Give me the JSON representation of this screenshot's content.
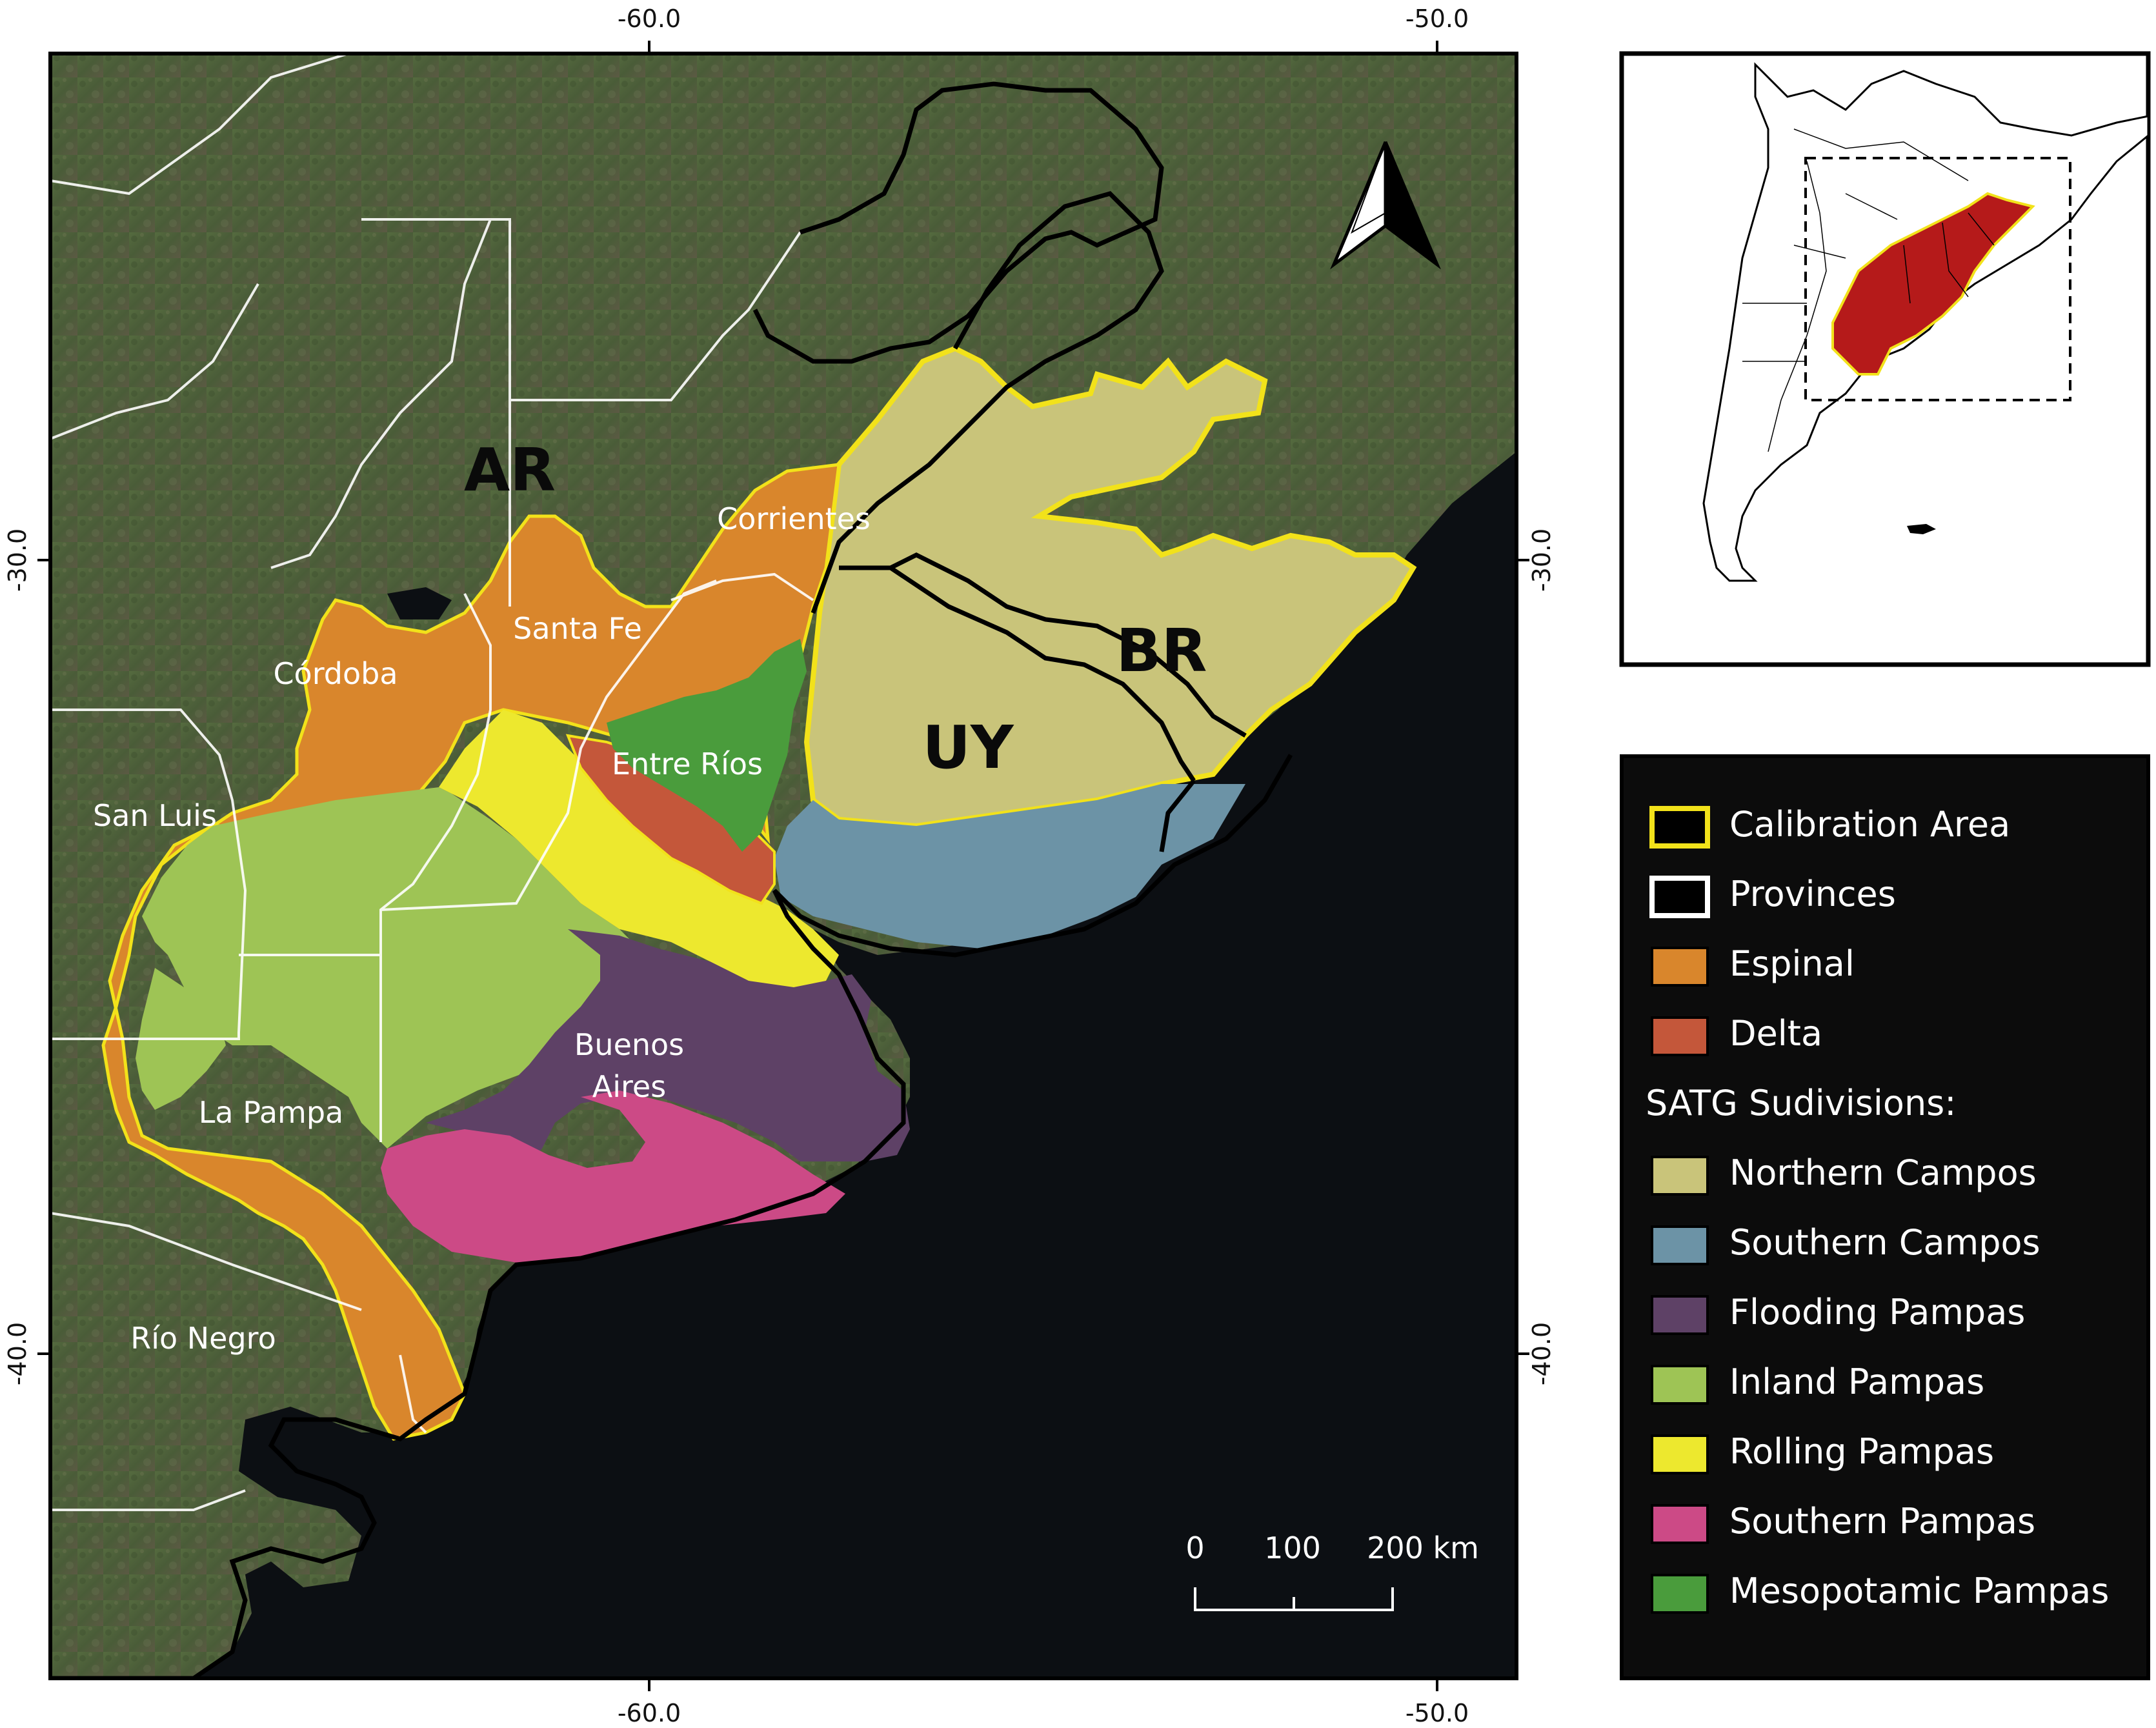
{
  "axes": {
    "top": [
      "-60.0",
      "-50.0"
    ],
    "bottom": [
      "-60.0",
      "-50.0"
    ],
    "left": [
      "-30.0",
      "-40.0"
    ],
    "right": [
      "-30.0",
      "-40.0"
    ]
  },
  "countries": {
    "ar": "AR",
    "uy": "UY",
    "br": "BR"
  },
  "provinces": {
    "corrientes": "Corrientes",
    "santa_fe": "Santa Fe",
    "cordoba": "Córdoba",
    "entre_rios": "Entre Ríos",
    "san_luis": "San Luis",
    "buenos_aires_1": "Buenos",
    "buenos_aires_2": "Aires",
    "la_pampa": "La Pampa",
    "rio_negro": "Río Negro"
  },
  "scale": {
    "t0": "0",
    "t1": "100",
    "t2": "200 km"
  },
  "legend": {
    "items": [
      {
        "label": "Calibration Area",
        "color": "#000000",
        "border": "#f2e21a"
      },
      {
        "label": "Provinces",
        "color": "#000000",
        "border": "#ffffff"
      },
      {
        "label": "Espinal",
        "color": "#d9862c"
      },
      {
        "label": "Delta",
        "color": "#c4573a"
      }
    ],
    "subtitle": "SATG Sudivisions:",
    "subdivisions": [
      {
        "label": "Northern Campos",
        "color": "#c9c47a"
      },
      {
        "label": "Southern Campos",
        "color": "#6c93a6"
      },
      {
        "label": "Flooding Pampas",
        "color": "#5e4166"
      },
      {
        "label": "Inland Pampas",
        "color": "#9ec455"
      },
      {
        "label": "Rolling Pampas",
        "color": "#ede82e"
      },
      {
        "label": "Southern Pampas",
        "color": "#cc4a86"
      },
      {
        "label": "Mesopotamic Pampas",
        "color": "#4a9c3c"
      }
    ]
  },
  "colors": {
    "ocean": "#0c0f13",
    "land": "#4d5e3c",
    "calibration_outline": "#f2e21a",
    "inset_fill": "#b51a1a"
  },
  "icons": {
    "north": "north-arrow-icon"
  }
}
